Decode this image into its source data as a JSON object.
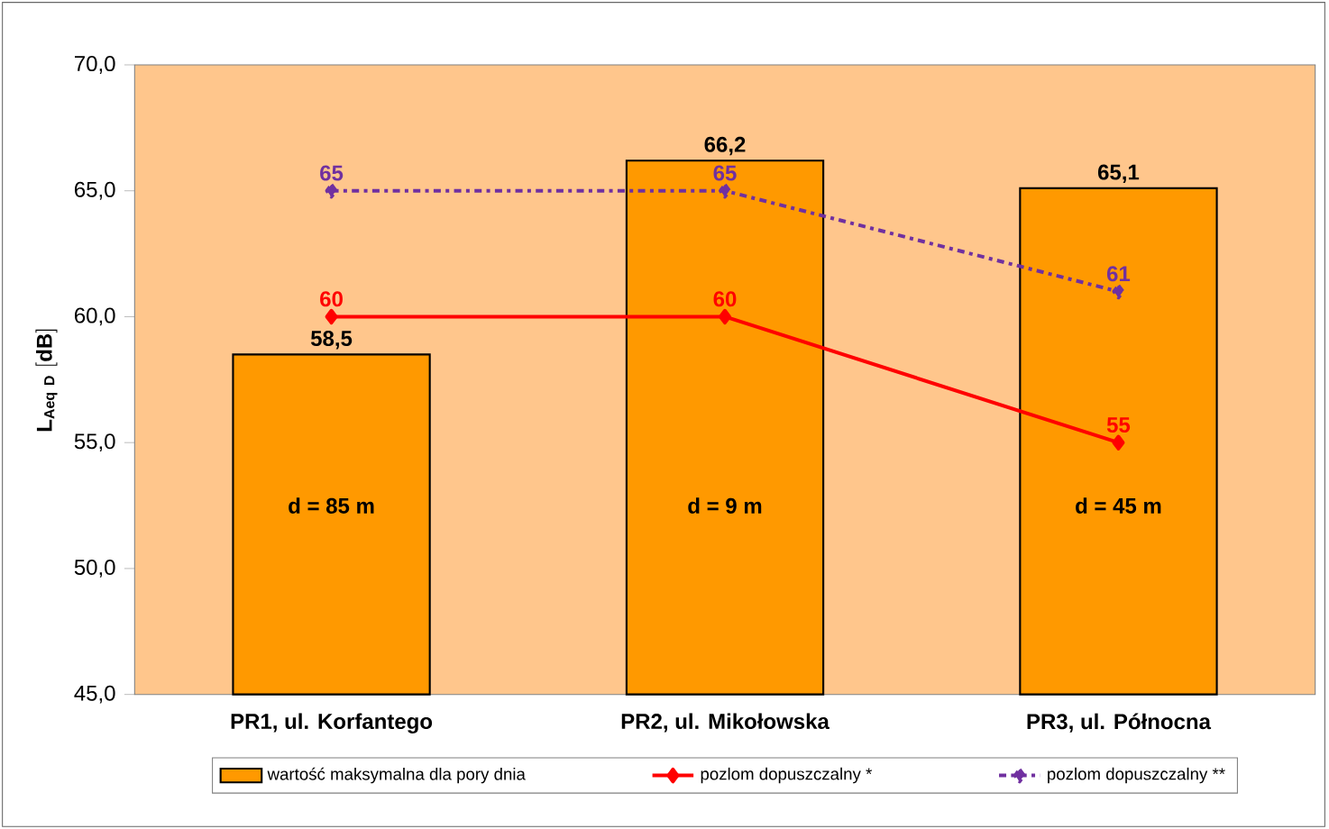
{
  "chart_data": {
    "type": "bar",
    "ylabel": "\\mathbf{L_{Aeq\\ D}\\ [dB]}",
    "categories": [
      "PR1, ul. Korfantego",
      "PR2, ul. Mikołowska",
      "PR3, ul. Północna"
    ],
    "series": [
      {
        "name": "wartość maksymalna dla pory dnia",
        "color": "#ff9900",
        "values": [
          58.5,
          66.2,
          65.1
        ],
        "value_labels": [
          "58,5",
          "66,2",
          "65,1"
        ]
      },
      {
        "name": "pozlom dopuszczalny *",
        "type": "line",
        "color": "#ff0000",
        "values": [
          60,
          60,
          55
        ],
        "value_labels": [
          "60",
          "60",
          "55"
        ],
        "marker": "diamond",
        "line_style": "solid"
      },
      {
        "name": "pozlom dopuszczalny **",
        "type": "line",
        "color": "#7030a0",
        "values": [
          65,
          65,
          61
        ],
        "value_labels": [
          "65",
          "65",
          "61"
        ],
        "marker": "diamond",
        "line_style": "dashed"
      }
    ],
    "ylim": [
      45,
      70
    ],
    "yticks": [
      {
        "value": 45,
        "label": "45,0"
      },
      {
        "value": 50,
        "label": "50,0"
      },
      {
        "value": 55,
        "label": "55,0"
      },
      {
        "value": 60,
        "label": "60,0"
      },
      {
        "value": 65,
        "label": "65,0"
      },
      {
        "value": 70,
        "label": "70,0"
      }
    ],
    "annotations": [
      "d = 85 m",
      "d = 9 m",
      "d = 45 m"
    ],
    "legend": "bottom",
    "grid": false
  }
}
